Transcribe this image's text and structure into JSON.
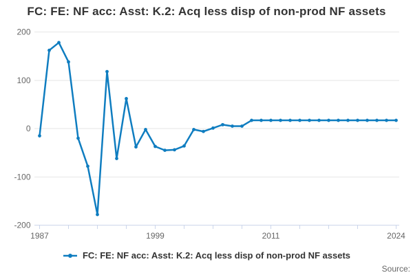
{
  "title": "FC: FE: NF acc: Asst: K.2: Acq less disp of non-prod NF assets",
  "source_label": "Source:",
  "legend": {
    "label": "FC: FE: NF acc: Asst: K.2: Acq less disp of non-prod NF assets"
  },
  "colors": {
    "line": "#0f7dc0",
    "grid": "#e6e6e6",
    "axis": "#ccd6eb",
    "title_text": "#333333",
    "axis_label": "#666666",
    "legend_text": "#333333",
    "source_text": "#666666",
    "background": "#ffffff"
  },
  "chart_data": {
    "type": "line",
    "title": "FC: FE: NF acc: Asst: K.2: Acq less disp of non-prod NF assets",
    "xlabel": "",
    "ylabel": "",
    "ylim": [
      -200,
      200
    ],
    "yticks": [
      200,
      100,
      0,
      -100,
      -200
    ],
    "xticks": [
      1987,
      1990,
      1993,
      1996,
      1999,
      2002,
      2005,
      2008,
      2011,
      2014,
      2017,
      2020,
      2024
    ],
    "xtick_labels": [
      {
        "x": 1987,
        "text": "1987"
      },
      {
        "x": 1999,
        "text": "1999"
      },
      {
        "x": 2011,
        "text": "2011"
      },
      {
        "x": 2024,
        "text": "2024"
      }
    ],
    "grid": "horizontal",
    "legend_position": "bottom",
    "x": [
      1987,
      1988,
      1989,
      1990,
      1991,
      1992,
      1993,
      1994,
      1995,
      1996,
      1997,
      1998,
      1999,
      2000,
      2001,
      2002,
      2003,
      2004,
      2005,
      2006,
      2007,
      2008,
      2009,
      2010,
      2011,
      2012,
      2013,
      2014,
      2015,
      2016,
      2017,
      2018,
      2019,
      2020,
      2021,
      2022,
      2023,
      2024
    ],
    "series": [
      {
        "name": "FC: FE: NF acc: Asst: K.2: Acq less disp of non-prod NF assets",
        "values": [
          -15,
          162,
          178,
          138,
          -20,
          -78,
          -178,
          118,
          -62,
          62,
          -38,
          -2,
          -37,
          -45,
          -44,
          -36,
          -2,
          -6,
          1,
          8,
          5,
          5,
          17,
          17,
          17,
          17,
          17,
          17,
          17,
          17,
          17,
          17,
          17,
          17,
          17,
          17,
          17,
          17
        ]
      }
    ]
  }
}
